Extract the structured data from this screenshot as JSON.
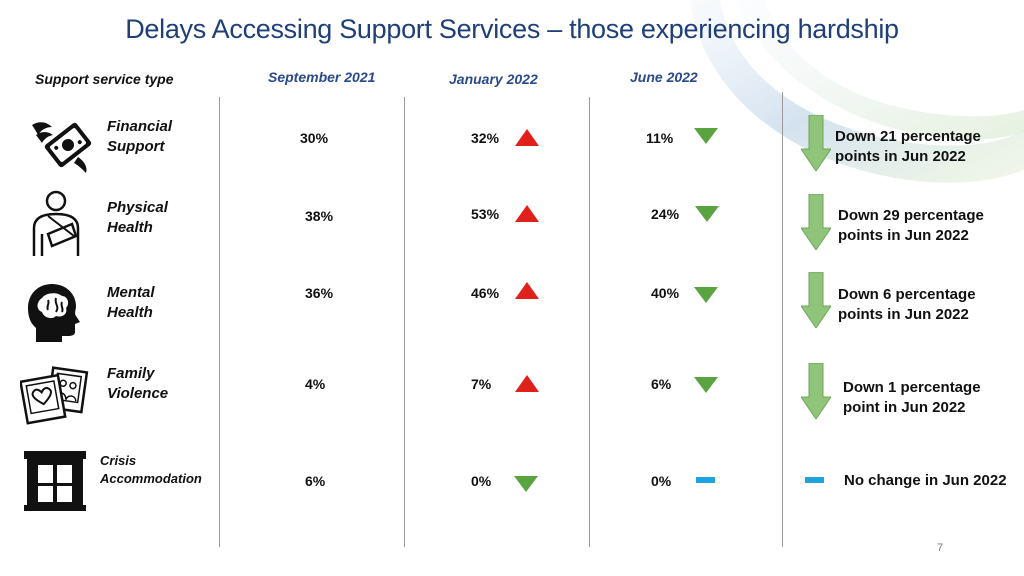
{
  "title": "Delays Accessing Support Services – those experiencing hardship",
  "headers": {
    "type": "Support service type",
    "col1": "September 2021",
    "col2": "January 2022",
    "col3": "June 2022"
  },
  "rows": [
    {
      "label_line1": "Financial",
      "label_line2": "Support",
      "icon": "money-wings-icon",
      "sep2021": "30%",
      "jan2022": "32%",
      "jan_trend": "up",
      "jun2022": "11%",
      "jun_trend": "down",
      "note_line1": "Down 21 percentage",
      "note_line2": "points in Jun 2022"
    },
    {
      "label_line1": "Physical",
      "label_line2": "Health",
      "icon": "arm-sling-icon",
      "sep2021": "38%",
      "jan2022": "53%",
      "jan_trend": "up",
      "jun2022": "24%",
      "jun_trend": "down",
      "note_line1": "Down 29 percentage",
      "note_line2": "points in Jun 2022"
    },
    {
      "label_line1": "Mental",
      "label_line2": "Health",
      "icon": "head-brain-icon",
      "sep2021": "36%",
      "jan2022": "46%",
      "jan_trend": "up",
      "jun2022": "40%",
      "jun_trend": "down",
      "note_line1": "Down 6 percentage",
      "note_line2": "points in Jun 2022"
    },
    {
      "label_line1": "Family",
      "label_line2": "Violence",
      "icon": "family-photos-icon",
      "sep2021": "4%",
      "jan2022": "7%",
      "jan_trend": "up",
      "jun2022": "6%",
      "jun_trend": "down",
      "note_line1": "Down 1 percentage",
      "note_line2": "point in Jun 2022"
    },
    {
      "label_line1": "Crisis",
      "label_line2": "Accommodation",
      "icon": "window-curtains-icon",
      "sep2021": "6%",
      "jan2022": "0%",
      "jan_trend": "down",
      "jun2022": "0%",
      "jun_trend": "flat",
      "note_line1": "No change in Jun 2022",
      "note_line2": ""
    }
  ],
  "page_number": "7",
  "colors": {
    "title": "#1f3f7a",
    "header": "#2a4a8c",
    "up": "#e0201b",
    "down": "#5aa341",
    "flat": "#1aa3dc",
    "big_arrow": "#8fc47a"
  }
}
